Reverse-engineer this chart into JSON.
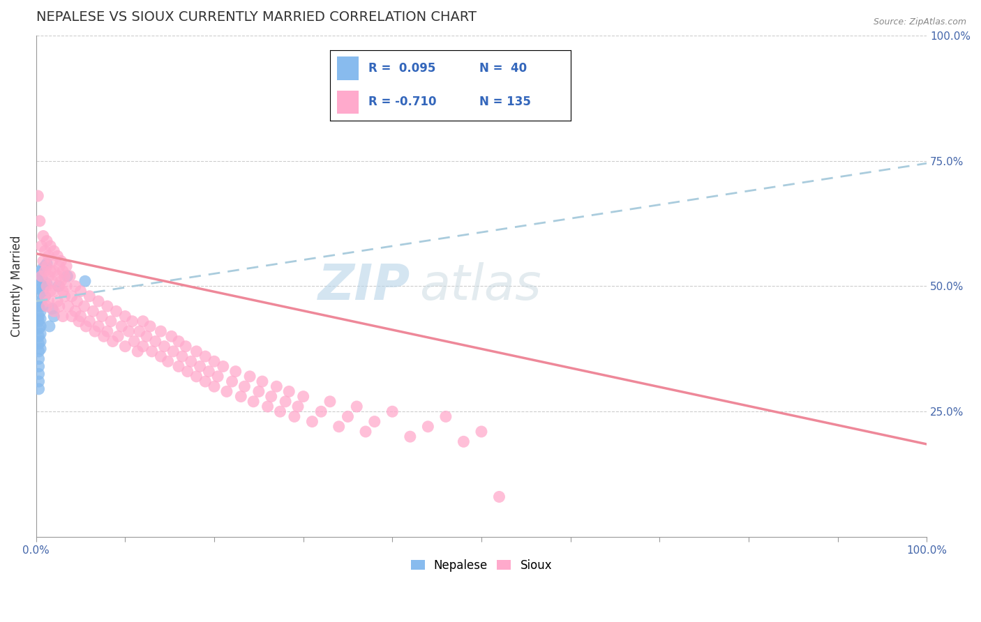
{
  "title": "NEPALESE VS SIOUX CURRENTLY MARRIED CORRELATION CHART",
  "source_text": "Source: ZipAtlas.com",
  "ylabel": "Currently Married",
  "xlim": [
    0.0,
    1.0
  ],
  "ylim": [
    0.0,
    1.0
  ],
  "ytick_positions": [
    0.25,
    0.5,
    0.75,
    1.0
  ],
  "ytick_labels": [
    "25.0%",
    "50.0%",
    "75.0%",
    "100.0%"
  ],
  "grid_color": "#cccccc",
  "background_color": "#ffffff",
  "nepalese_color": "#88bbee",
  "sioux_color": "#ffaacc",
  "nepalese_line_color": "#aaccdd",
  "sioux_line_color": "#ee8899",
  "nepalese_R": 0.095,
  "nepalese_N": 40,
  "sioux_R": -0.71,
  "sioux_N": 135,
  "watermark": "ZIPatlas",
  "nepalese_trendline": [
    0.0,
    0.47,
    1.0,
    0.745
  ],
  "sioux_trendline": [
    0.0,
    0.565,
    1.0,
    0.185
  ],
  "nepalese_points": [
    [
      0.003,
      0.52
    ],
    [
      0.003,
      0.5
    ],
    [
      0.003,
      0.485
    ],
    [
      0.003,
      0.46
    ],
    [
      0.003,
      0.44
    ],
    [
      0.003,
      0.43
    ],
    [
      0.003,
      0.415
    ],
    [
      0.003,
      0.4
    ],
    [
      0.003,
      0.385
    ],
    [
      0.003,
      0.37
    ],
    [
      0.003,
      0.355
    ],
    [
      0.003,
      0.34
    ],
    [
      0.003,
      0.325
    ],
    [
      0.003,
      0.31
    ],
    [
      0.003,
      0.295
    ],
    [
      0.005,
      0.53
    ],
    [
      0.005,
      0.51
    ],
    [
      0.005,
      0.495
    ],
    [
      0.005,
      0.47
    ],
    [
      0.005,
      0.45
    ],
    [
      0.005,
      0.435
    ],
    [
      0.005,
      0.42
    ],
    [
      0.005,
      0.405
    ],
    [
      0.005,
      0.39
    ],
    [
      0.005,
      0.375
    ],
    [
      0.007,
      0.535
    ],
    [
      0.007,
      0.515
    ],
    [
      0.007,
      0.49
    ],
    [
      0.007,
      0.46
    ],
    [
      0.01,
      0.54
    ],
    [
      0.01,
      0.5
    ],
    [
      0.01,
      0.48
    ],
    [
      0.012,
      0.545
    ],
    [
      0.012,
      0.505
    ],
    [
      0.015,
      0.42
    ],
    [
      0.018,
      0.455
    ],
    [
      0.02,
      0.44
    ],
    [
      0.025,
      0.5
    ],
    [
      0.035,
      0.52
    ],
    [
      0.055,
      0.51
    ]
  ],
  "sioux_points": [
    [
      0.002,
      0.68
    ],
    [
      0.004,
      0.63
    ],
    [
      0.006,
      0.58
    ],
    [
      0.006,
      0.52
    ],
    [
      0.008,
      0.6
    ],
    [
      0.008,
      0.55
    ],
    [
      0.01,
      0.57
    ],
    [
      0.01,
      0.53
    ],
    [
      0.01,
      0.48
    ],
    [
      0.012,
      0.59
    ],
    [
      0.012,
      0.54
    ],
    [
      0.012,
      0.5
    ],
    [
      0.012,
      0.46
    ],
    [
      0.014,
      0.56
    ],
    [
      0.014,
      0.52
    ],
    [
      0.014,
      0.47
    ],
    [
      0.016,
      0.58
    ],
    [
      0.016,
      0.53
    ],
    [
      0.016,
      0.49
    ],
    [
      0.018,
      0.55
    ],
    [
      0.018,
      0.51
    ],
    [
      0.02,
      0.57
    ],
    [
      0.02,
      0.53
    ],
    [
      0.02,
      0.49
    ],
    [
      0.02,
      0.45
    ],
    [
      0.024,
      0.56
    ],
    [
      0.024,
      0.52
    ],
    [
      0.024,
      0.47
    ],
    [
      0.026,
      0.54
    ],
    [
      0.026,
      0.5
    ],
    [
      0.026,
      0.46
    ],
    [
      0.028,
      0.55
    ],
    [
      0.028,
      0.51
    ],
    [
      0.03,
      0.53
    ],
    [
      0.03,
      0.49
    ],
    [
      0.03,
      0.44
    ],
    [
      0.032,
      0.52
    ],
    [
      0.032,
      0.48
    ],
    [
      0.034,
      0.54
    ],
    [
      0.034,
      0.5
    ],
    [
      0.036,
      0.46
    ],
    [
      0.038,
      0.52
    ],
    [
      0.04,
      0.48
    ],
    [
      0.04,
      0.44
    ],
    [
      0.044,
      0.5
    ],
    [
      0.044,
      0.45
    ],
    [
      0.046,
      0.47
    ],
    [
      0.048,
      0.43
    ],
    [
      0.05,
      0.49
    ],
    [
      0.05,
      0.44
    ],
    [
      0.054,
      0.46
    ],
    [
      0.056,
      0.42
    ],
    [
      0.06,
      0.48
    ],
    [
      0.06,
      0.43
    ],
    [
      0.064,
      0.45
    ],
    [
      0.066,
      0.41
    ],
    [
      0.07,
      0.47
    ],
    [
      0.07,
      0.42
    ],
    [
      0.074,
      0.44
    ],
    [
      0.076,
      0.4
    ],
    [
      0.08,
      0.46
    ],
    [
      0.08,
      0.41
    ],
    [
      0.084,
      0.43
    ],
    [
      0.086,
      0.39
    ],
    [
      0.09,
      0.45
    ],
    [
      0.092,
      0.4
    ],
    [
      0.096,
      0.42
    ],
    [
      0.1,
      0.44
    ],
    [
      0.1,
      0.38
    ],
    [
      0.104,
      0.41
    ],
    [
      0.108,
      0.43
    ],
    [
      0.11,
      0.39
    ],
    [
      0.114,
      0.37
    ],
    [
      0.116,
      0.41
    ],
    [
      0.12,
      0.43
    ],
    [
      0.12,
      0.38
    ],
    [
      0.124,
      0.4
    ],
    [
      0.128,
      0.42
    ],
    [
      0.13,
      0.37
    ],
    [
      0.134,
      0.39
    ],
    [
      0.14,
      0.41
    ],
    [
      0.14,
      0.36
    ],
    [
      0.144,
      0.38
    ],
    [
      0.148,
      0.35
    ],
    [
      0.152,
      0.4
    ],
    [
      0.154,
      0.37
    ],
    [
      0.16,
      0.39
    ],
    [
      0.16,
      0.34
    ],
    [
      0.164,
      0.36
    ],
    [
      0.168,
      0.38
    ],
    [
      0.17,
      0.33
    ],
    [
      0.174,
      0.35
    ],
    [
      0.18,
      0.37
    ],
    [
      0.18,
      0.32
    ],
    [
      0.184,
      0.34
    ],
    [
      0.19,
      0.36
    ],
    [
      0.19,
      0.31
    ],
    [
      0.194,
      0.33
    ],
    [
      0.2,
      0.35
    ],
    [
      0.2,
      0.3
    ],
    [
      0.204,
      0.32
    ],
    [
      0.21,
      0.34
    ],
    [
      0.214,
      0.29
    ],
    [
      0.22,
      0.31
    ],
    [
      0.224,
      0.33
    ],
    [
      0.23,
      0.28
    ],
    [
      0.234,
      0.3
    ],
    [
      0.24,
      0.32
    ],
    [
      0.244,
      0.27
    ],
    [
      0.25,
      0.29
    ],
    [
      0.254,
      0.31
    ],
    [
      0.26,
      0.26
    ],
    [
      0.264,
      0.28
    ],
    [
      0.27,
      0.3
    ],
    [
      0.274,
      0.25
    ],
    [
      0.28,
      0.27
    ],
    [
      0.284,
      0.29
    ],
    [
      0.29,
      0.24
    ],
    [
      0.294,
      0.26
    ],
    [
      0.3,
      0.28
    ],
    [
      0.31,
      0.23
    ],
    [
      0.32,
      0.25
    ],
    [
      0.33,
      0.27
    ],
    [
      0.34,
      0.22
    ],
    [
      0.35,
      0.24
    ],
    [
      0.36,
      0.26
    ],
    [
      0.37,
      0.21
    ],
    [
      0.38,
      0.23
    ],
    [
      0.4,
      0.25
    ],
    [
      0.42,
      0.2
    ],
    [
      0.44,
      0.22
    ],
    [
      0.46,
      0.24
    ],
    [
      0.48,
      0.19
    ],
    [
      0.5,
      0.21
    ],
    [
      0.52,
      0.08
    ]
  ]
}
